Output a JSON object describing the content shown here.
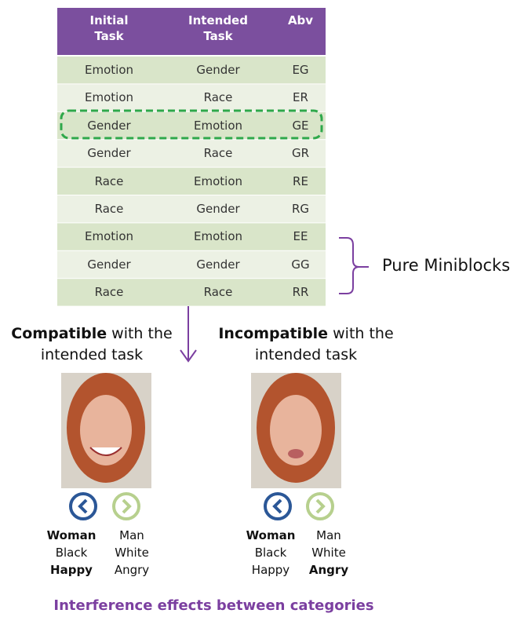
{
  "table": {
    "header": [
      "Initial Task",
      "Intended Task",
      "Abv"
    ],
    "rows": [
      [
        "Emotion",
        "Gender",
        "EG"
      ],
      [
        "Emotion",
        "Race",
        "ER"
      ],
      [
        "Gender",
        "Emotion",
        "GE"
      ],
      [
        "Gender",
        "Race",
        "GR"
      ],
      [
        "Race",
        "Emotion",
        "RE"
      ],
      [
        "Race",
        "Gender",
        "RG"
      ],
      [
        "Emotion",
        "Emotion",
        "EE"
      ],
      [
        "Gender",
        "Gender",
        "GG"
      ],
      [
        "Race",
        "Race",
        "RR"
      ]
    ]
  },
  "annotation": "Pure Miniblocks",
  "conditions": [
    {
      "title_bold": "Compatible",
      "title_rest": "with the",
      "title_line2": "intended task",
      "left_labels": [
        "Woman",
        "Black",
        "Happy"
      ],
      "right_labels": [
        "Man",
        "White",
        "Angry"
      ]
    },
    {
      "title_bold": "Incompatible",
      "title_rest": "with the",
      "title_line2": "intended task",
      "left_labels": [
        "Woman",
        "Black",
        "Happy"
      ],
      "right_labels": [
        "Man",
        "White",
        "Angry"
      ]
    }
  ],
  "footer": "Interference effects between categories"
}
